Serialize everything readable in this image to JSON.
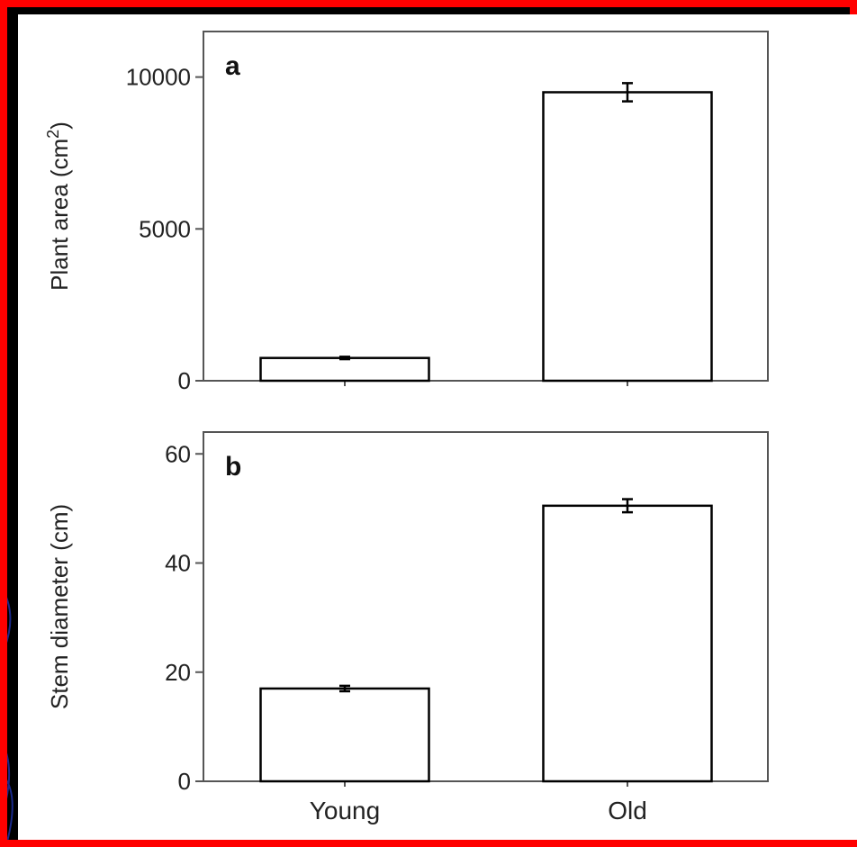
{
  "colors": {
    "outer_background": "#000000",
    "border": "#ff0000",
    "panel_background": "#ffffff",
    "bar_fill": "#ffffff",
    "bar_stroke": "#000000",
    "axis": "#555555",
    "decoration_lines": "#1a2a8c"
  },
  "chart_data": [
    {
      "type": "bar",
      "panel_label": "a",
      "categories": [
        "Young",
        "Old"
      ],
      "values": [
        750,
        9500
      ],
      "errors": [
        40,
        300
      ],
      "ylabel": "Plant area (cm",
      "ylabel_sup": "2",
      "ylabel_end": ")",
      "ylim": [
        0,
        11500
      ],
      "yticks": [
        0,
        5000,
        10000
      ],
      "ytick_labels": [
        "0",
        "5000",
        "10000"
      ],
      "show_xtick_labels": false
    },
    {
      "type": "bar",
      "panel_label": "b",
      "categories": [
        "Young",
        "Old"
      ],
      "values": [
        17,
        50.5
      ],
      "errors": [
        0.5,
        1.2
      ],
      "ylabel": "Stem diameter (cm)",
      "ylim": [
        0,
        64
      ],
      "yticks": [
        0,
        20,
        40,
        60
      ],
      "ytick_labels": [
        "0",
        "20",
        "40",
        "60"
      ],
      "show_xtick_labels": true
    }
  ]
}
